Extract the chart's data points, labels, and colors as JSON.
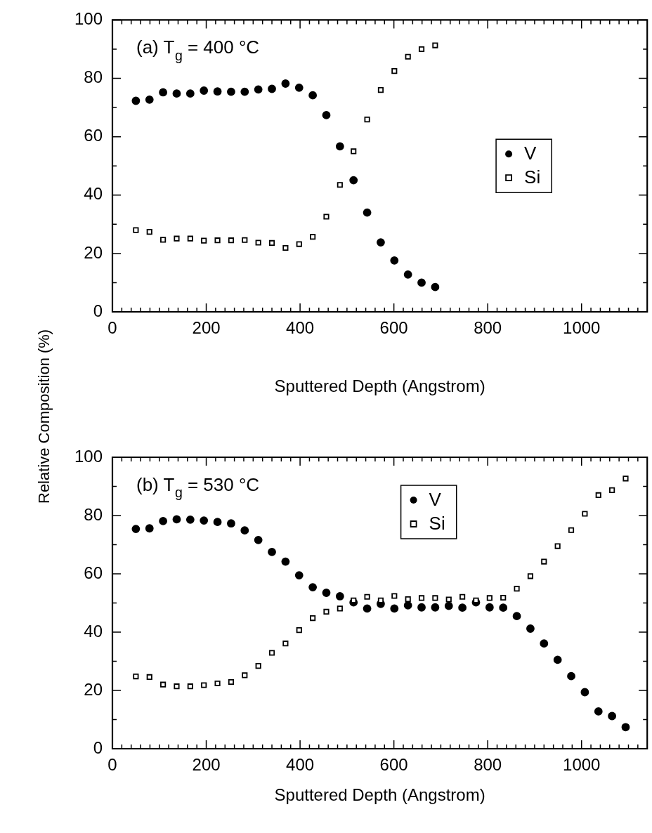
{
  "chart_data": [
    {
      "type": "scatter",
      "annotations": [
        "(a) T$_{g}$ = 400 °C"
      ],
      "xlabel": "Sputtered Depth (Angstrom)",
      "ylabel": "Relative Composition (%)",
      "legend": "right",
      "grid": false,
      "xlim": [
        0,
        1140
      ],
      "ylim": [
        0,
        100
      ],
      "xticks": [
        0,
        {
          "value": 20,
          "label": null
        },
        {
          "value": 40,
          "label": null
        },
        {
          "value": 60,
          "label": null
        },
        {
          "value": 80,
          "label": null
        },
        {
          "value": 100,
          "label": null
        },
        {
          "value": 120,
          "label": null
        },
        {
          "value": 140,
          "label": null
        },
        {
          "value": 160,
          "label": null
        },
        {
          "value": 180,
          "label": null
        },
        200,
        {
          "value": 220,
          "label": null
        },
        {
          "value": 240,
          "label": null
        },
        {
          "value": 260,
          "label": null
        },
        {
          "value": 280,
          "label": null
        },
        {
          "value": 300,
          "label": null
        },
        {
          "value": 320,
          "label": null
        },
        {
          "value": 340,
          "label": null
        },
        {
          "value": 360,
          "label": null
        },
        {
          "value": 380,
          "label": null
        },
        400,
        {
          "value": 420,
          "label": null
        },
        {
          "value": 440,
          "label": null
        },
        {
          "value": 460,
          "label": null
        },
        {
          "value": 480,
          "label": null
        },
        {
          "value": 500,
          "label": null
        },
        {
          "value": 520,
          "label": null
        },
        {
          "value": 540,
          "label": null
        },
        {
          "value": 560,
          "label": null
        },
        {
          "value": 580,
          "label": null
        },
        600,
        {
          "value": 620,
          "label": null
        },
        {
          "value": 640,
          "label": null
        },
        {
          "value": 660,
          "label": null
        },
        {
          "value": 680,
          "label": null
        },
        {
          "value": 700,
          "label": null
        },
        {
          "value": 720,
          "label": null
        },
        {
          "value": 740,
          "label": null
        },
        {
          "value": 760,
          "label": null
        },
        {
          "value": 780,
          "label": null
        },
        800,
        {
          "value": 820,
          "label": null
        },
        {
          "value": 840,
          "label": null
        },
        {
          "value": 860,
          "label": null
        },
        {
          "value": 880,
          "label": null
        },
        {
          "value": 900,
          "label": null
        },
        {
          "value": 920,
          "label": null
        },
        {
          "value": 940,
          "label": null
        },
        {
          "value": 960,
          "label": null
        },
        {
          "value": 980,
          "label": null
        },
        1000,
        {
          "value": 1020,
          "label": null
        },
        {
          "value": 1040,
          "label": null
        },
        {
          "value": 1060,
          "label": null
        },
        {
          "value": 1080,
          "label": null
        },
        {
          "value": 1100,
          "label": null
        },
        {
          "value": 1120,
          "label": null
        }
      ],
      "yticks": [
        0,
        {
          "value": 10,
          "label": null
        },
        20,
        {
          "value": 30,
          "label": null
        },
        40,
        {
          "value": 50,
          "label": null
        },
        60,
        {
          "value": 70,
          "label": null
        },
        80,
        {
          "value": 90,
          "label": null
        },
        100
      ],
      "x": [
        50,
        79,
        108,
        137,
        166,
        195,
        224,
        253,
        282,
        311,
        340,
        369,
        398,
        427,
        456,
        485,
        514,
        543,
        572,
        601,
        630,
        659,
        688
      ],
      "series": [
        {
          "name": "V",
          "color": "#000000",
          "marker": "circle",
          "values": [
            72.3,
            72.7,
            75.2,
            74.8,
            74.8,
            75.8,
            75.5,
            75.4,
            75.4,
            76.2,
            76.4,
            78.2,
            76.8,
            74.2,
            67.4,
            56.7,
            45.1,
            34,
            23.8,
            17.6,
            12.8,
            10,
            8.5
          ]
        },
        {
          "name": "Si",
          "color": "#000000",
          "marker": "square",
          "values": [
            28,
            27.4,
            24.7,
            25.1,
            25.1,
            24.4,
            24.5,
            24.5,
            24.6,
            23.7,
            23.6,
            21.9,
            23.2,
            25.7,
            32.6,
            43.5,
            55,
            65.9,
            76,
            82.5,
            87.4,
            90,
            91.3
          ]
        }
      ]
    },
    {
      "type": "scatter",
      "annotations": [
        "(b) T$_{g}$ = 530 °C"
      ],
      "xlabel": "Sputtered Depth (Angstrom)",
      "legend": "top",
      "grid": false,
      "xlim": [
        0,
        1140
      ],
      "ylim": [
        0,
        100
      ],
      "xticks": [
        0,
        {
          "value": 20,
          "label": null
        },
        {
          "value": 40,
          "label": null
        },
        {
          "value": 60,
          "label": null
        },
        {
          "value": 80,
          "label": null
        },
        {
          "value": 100,
          "label": null
        },
        {
          "value": 120,
          "label": null
        },
        {
          "value": 140,
          "label": null
        },
        {
          "value": 160,
          "label": null
        },
        {
          "value": 180,
          "label": null
        },
        200,
        {
          "value": 220,
          "label": null
        },
        {
          "value": 240,
          "label": null
        },
        {
          "value": 260,
          "label": null
        },
        {
          "value": 280,
          "label": null
        },
        {
          "value": 300,
          "label": null
        },
        {
          "value": 320,
          "label": null
        },
        {
          "value": 340,
          "label": null
        },
        {
          "value": 360,
          "label": null
        },
        {
          "value": 380,
          "label": null
        },
        400,
        {
          "value": 420,
          "label": null
        },
        {
          "value": 440,
          "label": null
        },
        {
          "value": 460,
          "label": null
        },
        {
          "value": 480,
          "label": null
        },
        {
          "value": 500,
          "label": null
        },
        {
          "value": 520,
          "label": null
        },
        {
          "value": 540,
          "label": null
        },
        {
          "value": 560,
          "label": null
        },
        {
          "value": 580,
          "label": null
        },
        600,
        {
          "value": 620,
          "label": null
        },
        {
          "value": 640,
          "label": null
        },
        {
          "value": 660,
          "label": null
        },
        {
          "value": 680,
          "label": null
        },
        {
          "value": 700,
          "label": null
        },
        {
          "value": 720,
          "label": null
        },
        {
          "value": 740,
          "label": null
        },
        {
          "value": 760,
          "label": null
        },
        {
          "value": 780,
          "label": null
        },
        800,
        {
          "value": 820,
          "label": null
        },
        {
          "value": 840,
          "label": null
        },
        {
          "value": 860,
          "label": null
        },
        {
          "value": 880,
          "label": null
        },
        {
          "value": 900,
          "label": null
        },
        {
          "value": 920,
          "label": null
        },
        {
          "value": 940,
          "label": null
        },
        {
          "value": 960,
          "label": null
        },
        {
          "value": 980,
          "label": null
        },
        1000,
        {
          "value": 1020,
          "label": null
        },
        {
          "value": 1040,
          "label": null
        },
        {
          "value": 1060,
          "label": null
        },
        {
          "value": 1080,
          "label": null
        },
        {
          "value": 1100,
          "label": null
        },
        {
          "value": 1120,
          "label": null
        }
      ],
      "yticks": [
        0,
        {
          "value": 10,
          "label": null
        },
        20,
        {
          "value": 30,
          "label": null
        },
        40,
        {
          "value": 50,
          "label": null
        },
        60,
        {
          "value": 70,
          "label": null
        },
        80,
        {
          "value": 90,
          "label": null
        },
        100
      ],
      "x": [
        50,
        79,
        108,
        137,
        166,
        195,
        224,
        253,
        282,
        311,
        340,
        369,
        398,
        427,
        456,
        485,
        514,
        543,
        572,
        601,
        630,
        659,
        688,
        717,
        746,
        775,
        804,
        833,
        862,
        891,
        920,
        949,
        978,
        1007,
        1036,
        1065,
        1094
      ],
      "series": [
        {
          "name": "V",
          "color": "#000000",
          "marker": "circle",
          "values": [
            75.4,
            75.6,
            78.1,
            78.7,
            78.6,
            78.3,
            77.8,
            77.3,
            74.9,
            71.6,
            67.5,
            64.2,
            59.5,
            55.4,
            53.5,
            52.3,
            50.2,
            48.1,
            49.7,
            48.1,
            49.2,
            48.5,
            48.5,
            49,
            48.4,
            50.2,
            48.5,
            48.4,
            45.5,
            41.2,
            36.1,
            30.5,
            24.9,
            19.4,
            12.8,
            11.2,
            7.4
          ]
        },
        {
          "name": "Si",
          "color": "#000000",
          "marker": "square",
          "values": [
            24.8,
            24.6,
            22,
            21.4,
            21.4,
            21.8,
            22.4,
            22.9,
            25.2,
            28.4,
            32.9,
            36.1,
            40.7,
            44.8,
            47,
            48.1,
            50.9,
            52.1,
            50.9,
            52.4,
            51.3,
            51.7,
            51.7,
            51.2,
            52.1,
            50.9,
            51.7,
            51.8,
            54.9,
            59.2,
            64.2,
            69.5,
            75,
            80.6,
            87,
            88.7,
            92.7
          ]
        }
      ]
    }
  ]
}
